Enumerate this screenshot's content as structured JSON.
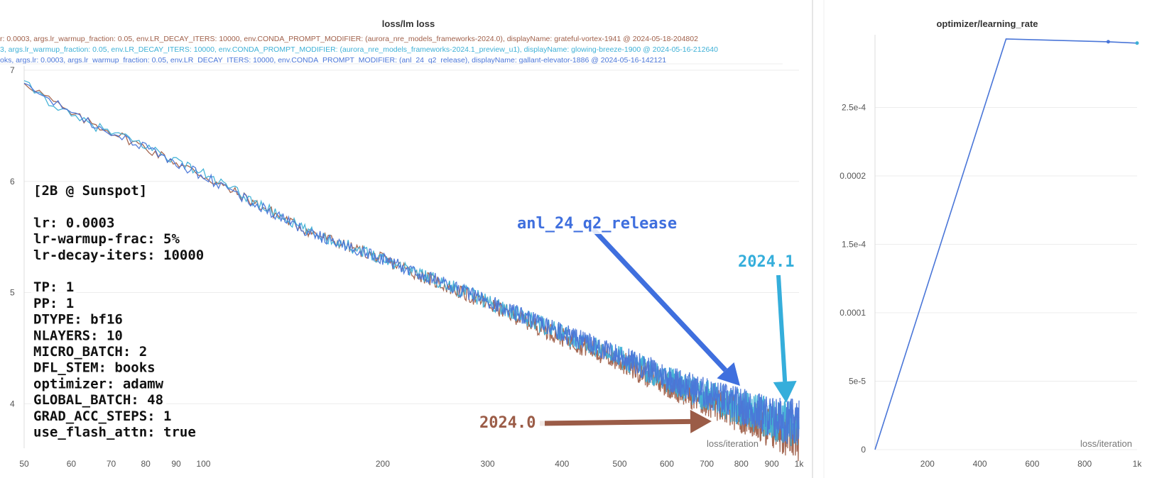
{
  "colors": {
    "run_2024_0": "#a0604a",
    "run_2024_1": "#3eb0d6",
    "run_anl": "#4a76d8",
    "arrow_anl": "#3f6fde",
    "arrow_2024_1": "#35aedb",
    "arrow_2024_0": "#9b5c47"
  },
  "chart_data": [
    {
      "type": "line",
      "title": "loss/lm loss",
      "xlabel": "loss/iteration",
      "ylabel": "",
      "x_scale": "log",
      "xlim": [
        50,
        1000
      ],
      "ylim": [
        3.6,
        7.0
      ],
      "x_ticks": [
        "50",
        "60",
        "70",
        "80",
        "90",
        "100",
        "200",
        "300",
        "400",
        "500",
        "600",
        "700",
        "800",
        "900",
        "1k"
      ],
      "y_ticks": [
        "4",
        "5",
        "6",
        "7"
      ],
      "legend": [
        "r: 0.0003, args.lr_warmup_fraction: 0.05, env.LR_DECAY_ITERS: 10000, env.CONDA_PROMPT_MODIFIER: (aurora_nre_models_frameworks-2024.0), displayName: grateful-vortex-1941 @ 2024-05-18-204802",
        "3, args.lr_warmup_fraction: 0.05, env.LR_DECAY_ITERS: 10000, env.CONDA_PROMPT_MODIFIER: (aurora_nre_models_frameworks-2024.1_preview_u1), displayName: glowing-breeze-1900 @ 2024-05-16-212640",
        "oks, args.lr: 0.0003, args.lr_warmup_fraction: 0.05, env.LR_DECAY_ITERS: 10000, env.CONDA_PROMPT_MODIFIER: (anl_24_q2_release), displayName: gallant-elevator-1886 @ 2024-05-16-142121"
      ],
      "series": [
        {
          "name": "2024.0",
          "x": [
            50,
            60,
            70,
            80,
            100,
            150,
            200,
            300,
            400,
            500,
            600,
            700,
            800,
            900,
            1000
          ],
          "values": [
            6.9,
            6.6,
            6.45,
            6.3,
            6.05,
            5.55,
            5.3,
            4.9,
            4.6,
            4.38,
            4.18,
            4.02,
            3.9,
            3.78,
            3.7
          ]
        },
        {
          "name": "2024.1",
          "x": [
            50,
            60,
            70,
            80,
            100,
            150,
            200,
            300,
            400,
            500,
            600,
            700,
            800,
            900,
            1000
          ],
          "values": [
            6.88,
            6.58,
            6.44,
            6.32,
            6.07,
            5.55,
            5.31,
            4.92,
            4.63,
            4.42,
            4.22,
            4.07,
            3.96,
            3.86,
            3.8
          ]
        },
        {
          "name": "anl_24_q2_release",
          "x": [
            50,
            60,
            70,
            80,
            100,
            150,
            200,
            300,
            400,
            500,
            600,
            700,
            800,
            900,
            1000
          ],
          "values": [
            6.9,
            6.6,
            6.44,
            6.3,
            6.05,
            5.54,
            5.3,
            4.93,
            4.64,
            4.43,
            4.24,
            4.09,
            3.98,
            3.88,
            3.82
          ]
        }
      ],
      "annotations": {
        "info_lines": [
          "[2B @ Sunspot]",
          "",
          "lr: 0.0003",
          "lr-warmup-frac: 5%",
          "lr-decay-iters: 10000",
          "",
          "TP: 1",
          "PP: 1",
          "DTYPE: bf16",
          "NLAYERS: 10",
          "MICRO_BATCH: 2",
          "DFL_STEM: books",
          "optimizer: adamw",
          "GLOBAL_BATCH: 48",
          "GRAD_ACC_STEPS: 1",
          "use_flash_attn: true"
        ],
        "label_anl": "anl_24_q2_release",
        "label_2024_1": "2024.1",
        "label_2024_0": "2024.0"
      }
    },
    {
      "type": "line",
      "title": "optimizer/learning_rate",
      "xlabel": "loss/iteration",
      "ylabel": "",
      "xlim": [
        0,
        1000
      ],
      "ylim": [
        0,
        0.0003
      ],
      "x_ticks": [
        "200",
        "400",
        "600",
        "800",
        "1k"
      ],
      "y_ticks": [
        "0",
        "5e-5",
        "0.0001",
        "1.5e-4",
        "0.0002",
        "2.5e-4"
      ],
      "series": [
        {
          "name": "",
          "x": [
            0,
            500,
            890,
            1000
          ],
          "values": [
            0,
            0.0003,
            0.000298,
            0.000297
          ]
        }
      ]
    }
  ]
}
